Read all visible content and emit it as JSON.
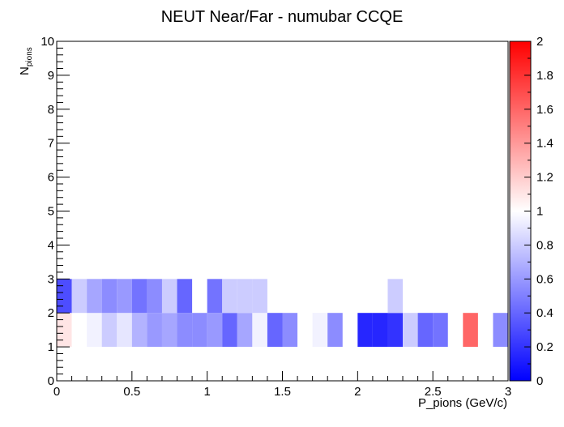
{
  "chart_data": {
    "type": "heatmap",
    "title": "NEUT Near/Far - numubar CCQE",
    "xlabel": "P_pions (GeV/c)",
    "ylabel": "N",
    "ylabel_sub": "pions",
    "xlim": [
      0,
      3
    ],
    "ylim": [
      0,
      10
    ],
    "zlim": [
      0,
      2
    ],
    "x_ticks": [
      "0",
      "0.5",
      "1",
      "1.5",
      "2",
      "2.5",
      "3"
    ],
    "y_ticks": [
      "0",
      "1",
      "2",
      "3",
      "4",
      "5",
      "6",
      "7",
      "8",
      "9",
      "10"
    ],
    "z_ticks": [
      "0",
      "0.2",
      "0.4",
      "0.6",
      "0.8",
      "1",
      "1.2",
      "1.4",
      "1.6",
      "1.8",
      "2"
    ],
    "x_bin_width": 0.1,
    "colorscale": [
      "#0000ff",
      "#ffffff",
      "#ff0000"
    ],
    "cells": [
      {
        "x": 0.0,
        "y": 1,
        "z": 1.1
      },
      {
        "x": 0.1,
        "y": 1,
        "z": 1.0
      },
      {
        "x": 0.2,
        "y": 1,
        "z": 0.95
      },
      {
        "x": 0.3,
        "y": 1,
        "z": 0.8
      },
      {
        "x": 0.4,
        "y": 1,
        "z": 0.9
      },
      {
        "x": 0.5,
        "y": 1,
        "z": 0.7
      },
      {
        "x": 0.6,
        "y": 1,
        "z": 0.6
      },
      {
        "x": 0.7,
        "y": 1,
        "z": 0.65
      },
      {
        "x": 0.8,
        "y": 1,
        "z": 0.55
      },
      {
        "x": 0.9,
        "y": 1,
        "z": 0.55
      },
      {
        "x": 1.0,
        "y": 1,
        "z": 0.6
      },
      {
        "x": 1.1,
        "y": 1,
        "z": 0.4
      },
      {
        "x": 1.2,
        "y": 1,
        "z": 0.65
      },
      {
        "x": 1.3,
        "y": 1,
        "z": 0.95
      },
      {
        "x": 1.4,
        "y": 1,
        "z": 0.4
      },
      {
        "x": 1.5,
        "y": 1,
        "z": 0.55
      },
      {
        "x": 1.7,
        "y": 1,
        "z": 0.95
      },
      {
        "x": 1.8,
        "y": 1,
        "z": 0.55
      },
      {
        "x": 2.0,
        "y": 1,
        "z": 0.15
      },
      {
        "x": 2.1,
        "y": 1,
        "z": 0.15
      },
      {
        "x": 2.2,
        "y": 1,
        "z": 0.2
      },
      {
        "x": 2.3,
        "y": 1,
        "z": 0.8
      },
      {
        "x": 2.4,
        "y": 1,
        "z": 0.4
      },
      {
        "x": 2.5,
        "y": 1,
        "z": 0.45
      },
      {
        "x": 2.7,
        "y": 1,
        "z": 1.6
      },
      {
        "x": 2.9,
        "y": 1,
        "z": 0.55
      },
      {
        "x": 0.0,
        "y": 2,
        "z": 0.3
      },
      {
        "x": 0.1,
        "y": 2,
        "z": 0.8
      },
      {
        "x": 0.2,
        "y": 2,
        "z": 0.65
      },
      {
        "x": 0.3,
        "y": 2,
        "z": 0.55
      },
      {
        "x": 0.4,
        "y": 2,
        "z": 0.6
      },
      {
        "x": 0.5,
        "y": 2,
        "z": 0.45
      },
      {
        "x": 0.6,
        "y": 2,
        "z": 0.55
      },
      {
        "x": 0.7,
        "y": 2,
        "z": 0.8
      },
      {
        "x": 0.8,
        "y": 2,
        "z": 0.4
      },
      {
        "x": 1.0,
        "y": 2,
        "z": 0.45
      },
      {
        "x": 1.1,
        "y": 2,
        "z": 0.8
      },
      {
        "x": 1.2,
        "y": 2,
        "z": 0.8
      },
      {
        "x": 1.3,
        "y": 2,
        "z": 0.8
      },
      {
        "x": 2.2,
        "y": 2,
        "z": 0.8
      }
    ]
  }
}
